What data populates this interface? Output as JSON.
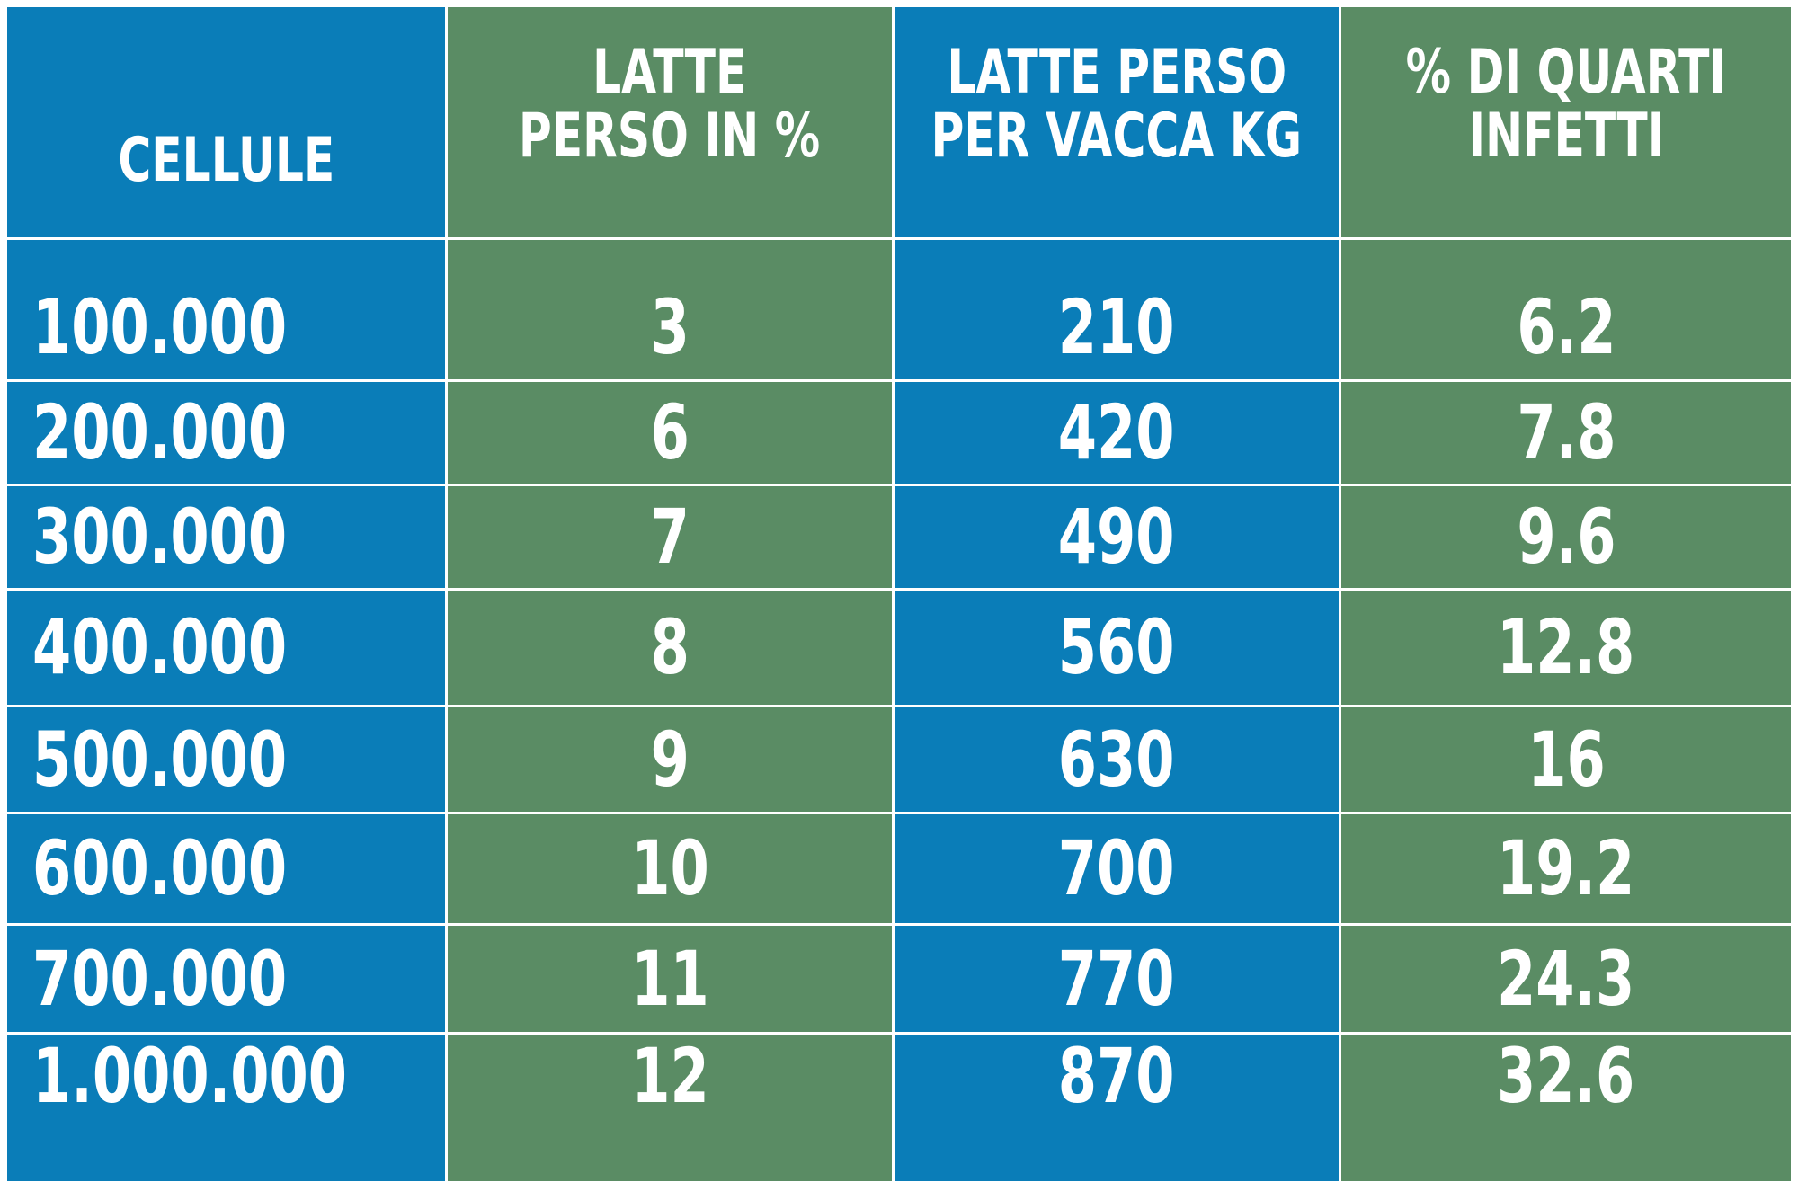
{
  "table": {
    "headers": [
      [
        "CELLULE"
      ],
      [
        "LATTE",
        "PERSO IN %"
      ],
      [
        "LATTE PERSO",
        "PER VACCA KG"
      ],
      [
        "% DI QUARTI",
        "INFETTI"
      ]
    ],
    "rows": [
      [
        "100.000",
        "3",
        "210",
        "6.2"
      ],
      [
        "200.000",
        "6",
        "420",
        "7.8"
      ],
      [
        "300.000",
        "7",
        "490",
        "9.6"
      ],
      [
        "400.000",
        "8",
        "560",
        "12.8"
      ],
      [
        "500.000",
        "9",
        "630",
        "16"
      ],
      [
        "600.000",
        "10",
        "700",
        "19.2"
      ],
      [
        "700.000",
        "11",
        "770",
        "24.3"
      ],
      [
        "1.000.000",
        "12",
        "870",
        "32.6"
      ]
    ]
  }
}
